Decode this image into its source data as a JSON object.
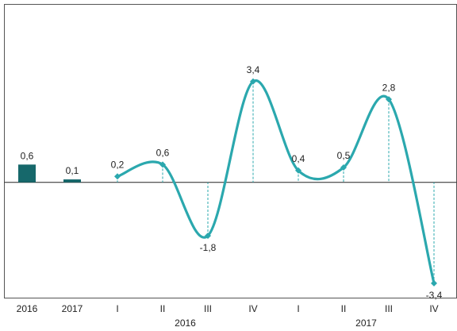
{
  "chart_data": {
    "type": "bar_line",
    "categories": [
      "2016",
      "2017",
      "I",
      "II",
      "III",
      "IV",
      "I",
      "II",
      "III",
      "IV"
    ],
    "category_groups": [
      {
        "label": "2016",
        "from": 2,
        "to": 5
      },
      {
        "label": "2017",
        "from": 6,
        "to": 9
      }
    ],
    "series": [
      {
        "type": "bar",
        "color": "#16686b",
        "values": [
          0.6,
          0.1,
          null,
          null,
          null,
          null,
          null,
          null,
          null,
          null
        ],
        "value_labels": [
          "0,6",
          "0,1",
          null,
          null,
          null,
          null,
          null,
          null,
          null,
          null
        ]
      },
      {
        "type": "line",
        "color": "#2ba8ae",
        "values": [
          null,
          null,
          0.2,
          0.6,
          -1.8,
          3.4,
          0.4,
          0.5,
          2.8,
          -3.4
        ],
        "value_labels": [
          null,
          null,
          "0,2",
          "0,6",
          "-1,8",
          "3,4",
          "0,4",
          "0,5",
          "2,8",
          "-3,4"
        ]
      }
    ],
    "ylim": [
      -3.9,
      6.0
    ]
  }
}
